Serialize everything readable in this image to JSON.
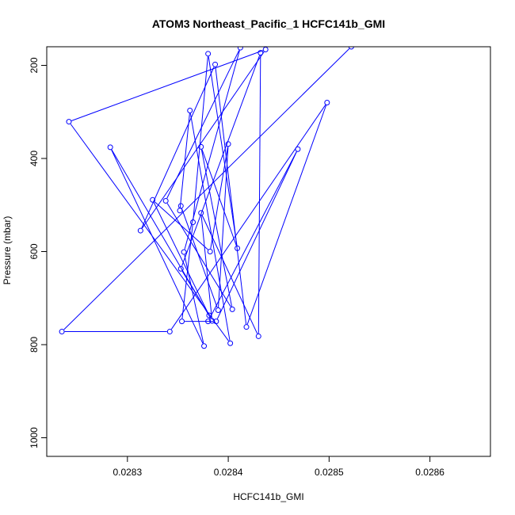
{
  "chart_data": {
    "type": "line",
    "title": "ATOM3 Northeast_Pacific_1 HCFC141b_GMI",
    "xlabel": "HCFC141b_GMI",
    "ylabel": "Pressure (mbar)",
    "xlim": [
      0.02822,
      0.02866
    ],
    "ylim": [
      1040,
      160
    ],
    "y_inverted": true,
    "x_ticks": [
      0.0283,
      0.0284,
      0.0285,
      0.0286
    ],
    "x_tick_labels": [
      "0.0283",
      "0.0284",
      "0.0285",
      "0.0286"
    ],
    "y_ticks": [
      200,
      400,
      600,
      800,
      1000
    ],
    "y_tick_labels": [
      "200",
      "400",
      "600",
      "800",
      "1000"
    ],
    "grid": false,
    "series": [
      {
        "color": "#0000ff",
        "marker": "open-circle",
        "points": [
          {
            "x": 0.028522,
            "y": 160
          },
          {
            "x": 0.028235,
            "y": 772
          },
          {
            "x": 0.028342,
            "y": 772
          },
          {
            "x": 0.028498,
            "y": 280
          },
          {
            "x": 0.028418,
            "y": 762
          },
          {
            "x": 0.028387,
            "y": 198
          },
          {
            "x": 0.028313,
            "y": 555
          },
          {
            "x": 0.028437,
            "y": 166
          },
          {
            "x": 0.028242,
            "y": 321
          },
          {
            "x": 0.028402,
            "y": 797
          },
          {
            "x": 0.028362,
            "y": 297
          },
          {
            "x": 0.028352,
            "y": 512
          },
          {
            "x": 0.028353,
            "y": 502
          },
          {
            "x": 0.02839,
            "y": 726
          },
          {
            "x": 0.0284,
            "y": 369
          },
          {
            "x": 0.028382,
            "y": 600
          },
          {
            "x": 0.028325,
            "y": 489
          },
          {
            "x": 0.028381,
            "y": 737
          },
          {
            "x": 0.028353,
            "y": 637
          },
          {
            "x": 0.028432,
            "y": 173
          },
          {
            "x": 0.02843,
            "y": 782
          },
          {
            "x": 0.028373,
            "y": 517
          },
          {
            "x": 0.028384,
            "y": 749
          },
          {
            "x": 0.028283,
            "y": 376
          },
          {
            "x": 0.028376,
            "y": 803
          },
          {
            "x": 0.028356,
            "y": 601
          },
          {
            "x": 0.028412,
            "y": 162
          },
          {
            "x": 0.028338,
            "y": 491
          },
          {
            "x": 0.028404,
            "y": 724
          },
          {
            "x": 0.028373,
            "y": 375
          },
          {
            "x": 0.028409,
            "y": 593
          },
          {
            "x": 0.02838,
            "y": 175
          },
          {
            "x": 0.028365,
            "y": 537
          },
          {
            "x": 0.028354,
            "y": 750
          },
          {
            "x": 0.028388,
            "y": 750
          },
          {
            "x": 0.028469,
            "y": 380
          },
          {
            "x": 0.02838,
            "y": 750
          }
        ]
      }
    ]
  }
}
